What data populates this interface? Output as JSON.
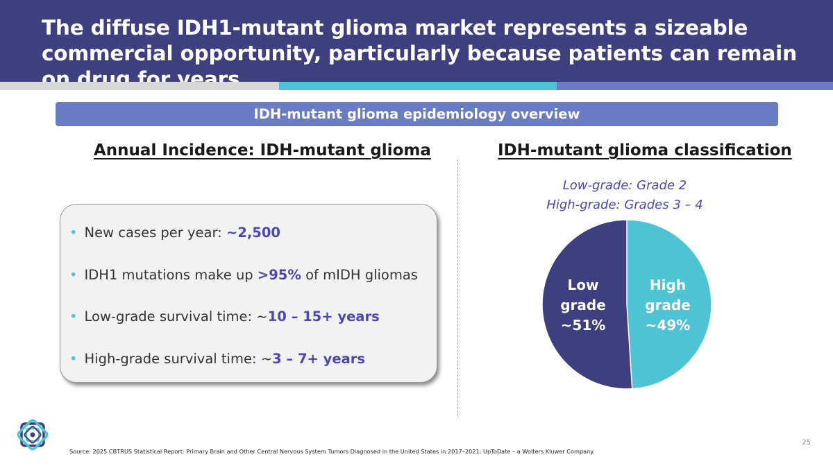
{
  "title": "The diffuse IDH1-mutant glioma market represents a sizeable commercial opportunity, particularly because patients can remain on drug for years",
  "banner": "IDH-mutant glioma epidemiology overview",
  "left": {
    "heading": "Annual Incidence: IDH-mutant glioma",
    "bullets": [
      {
        "pre": "New cases per year: ",
        "hl": "~2,500",
        "post": ""
      },
      {
        "pre": "IDH1 mutations make up ",
        "hl": ">95%",
        "post": " of mIDH gliomas"
      },
      {
        "pre": "Low-grade survival time: ~",
        "hl": "10 – 15+ years",
        "post": ""
      },
      {
        "pre": "High-grade survival time: ~",
        "hl": "3 – 7+ years",
        "post": ""
      }
    ]
  },
  "right": {
    "heading": "IDH-mutant glioma classification",
    "class_line1": "Low-grade: Grade 2",
    "class_line2": "High-grade: Grades 3 – 4"
  },
  "chart_data": {
    "type": "pie",
    "categories": [
      "Low grade",
      "High grade"
    ],
    "values": [
      51,
      49
    ],
    "labels": [
      {
        "line1": "Low",
        "line2": "grade",
        "line3": "~51%"
      },
      {
        "line1": "High",
        "line2": "grade",
        "line3": "~49%"
      }
    ],
    "colors": [
      "#3d3f7e",
      "#4dc3d3"
    ]
  },
  "page_number": "25",
  "source": "Source:  2025 CBTRUS Statistical Report: Primary Brain and Other Central Nervous System Tumors Diagnosed in the United States in 2017–2021; UpToDate – a Wolters Kluwer Company."
}
